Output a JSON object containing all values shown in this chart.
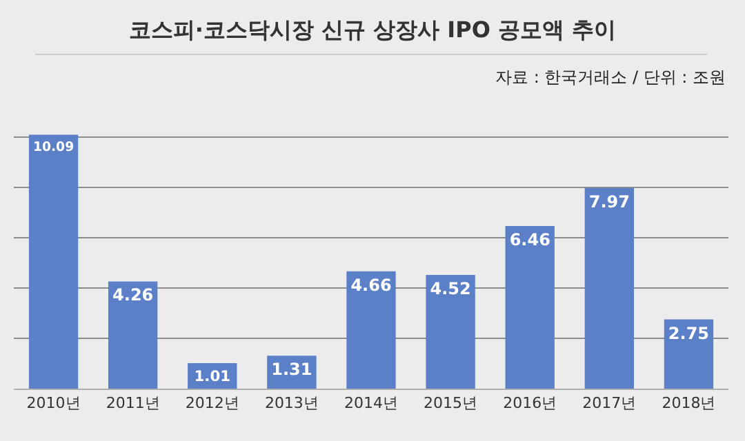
{
  "chart_data": {
    "type": "bar",
    "title": "코스피·코스닥시장 신규 상장사 IPO 공모액 추이",
    "annotations": [
      "자료 : 한국거래소 / 단위 : 조원"
    ],
    "categories": [
      "2010년",
      "2011년",
      "2012년",
      "2013년",
      "2014년",
      "2015년",
      "2016년",
      "2017년",
      "2018년"
    ],
    "values": [
      10.09,
      4.26,
      1.01,
      1.31,
      4.66,
      4.52,
      6.46,
      7.97,
      2.75
    ],
    "color": "#5b80c8",
    "yticks": [
      {
        "value": 0,
        "label": null
      },
      {
        "value": 2,
        "label": null
      },
      {
        "value": 4,
        "label": null
      },
      {
        "value": 6,
        "label": null
      },
      {
        "value": 8,
        "label": null
      },
      {
        "value": 10,
        "label": null
      }
    ],
    "grid": "y",
    "data_labels": true,
    "tick_labels": "x"
  }
}
